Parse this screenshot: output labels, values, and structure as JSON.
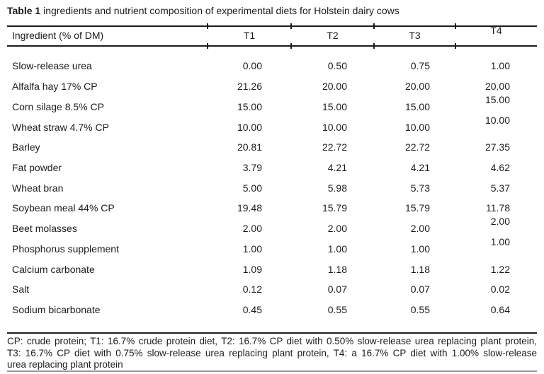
{
  "title": {
    "bold": "Table 1",
    "rest": " ingredients and nutrient composition of experimental diets for Holstein dairy cows"
  },
  "table": {
    "columns": [
      "Ingredient (% of DM)",
      "T1",
      "T2",
      "T3",
      "T4"
    ],
    "rows": [
      {
        "ingredient": "Slow-release urea",
        "values": [
          "0.00",
          "0.50",
          "0.75",
          "1.00"
        ]
      },
      {
        "ingredient": "Alfalfa hay 17% CP",
        "values": [
          "21.26",
          "20.00",
          "20.00",
          "20.00"
        ]
      },
      {
        "ingredient": "Corn silage 8.5% CP",
        "values": [
          "15.00",
          "15.00",
          "15.00",
          "15.00"
        ]
      },
      {
        "ingredient": "Wheat straw 4.7% CP",
        "values": [
          "10.00",
          "10.00",
          "10.00",
          "10.00"
        ]
      },
      {
        "ingredient": "Barley",
        "values": [
          "20.81",
          "22.72",
          "22.72",
          "27.35"
        ]
      },
      {
        "ingredient": "Fat powder",
        "values": [
          "3.79",
          "4.21",
          "4.21",
          "4.62"
        ]
      },
      {
        "ingredient": "Wheat bran",
        "values": [
          "5.00",
          "5.98",
          "5.73",
          "5.37"
        ]
      },
      {
        "ingredient": "Soybean meal 44% CP",
        "values": [
          "19.48",
          "15.79",
          "15.79",
          "11.78"
        ]
      },
      {
        "ingredient": "Beet molasses",
        "values": [
          "2.00",
          "2.00",
          "2.00",
          "2.00"
        ]
      },
      {
        "ingredient": "Phosphorus supplement",
        "values": [
          "1.00",
          "1.00",
          "1.00",
          "1.00"
        ]
      },
      {
        "ingredient": "Calcium carbonate",
        "values": [
          "1.09",
          "1.18",
          "1.18",
          "1.22"
        ]
      },
      {
        "ingredient": "Salt",
        "values": [
          "0.12",
          "0.07",
          "0.07",
          "0.02"
        ]
      },
      {
        "ingredient": "Sodium bicarbonate",
        "values": [
          "0.45",
          "0.55",
          "0.55",
          "0.64"
        ]
      }
    ]
  },
  "footnote": {
    "lines": [
      "CP: crude protein; T1: 16.7% crude protein diet, T2: 16.7% CP diet with 0.50% slow-release urea replacing plant protein,",
      "T3: 16.7% CP diet with 0.75% slow-release urea replacing plant protein, T4: a 16.7% CP diet with 1.00% slow-release",
      "urea replacing plant protein"
    ]
  },
  "colors": {
    "text": "#1c1c1c",
    "rule": "#1c1c1c",
    "bottom_rule": "#9a9a9a",
    "background": "#ffffff"
  }
}
